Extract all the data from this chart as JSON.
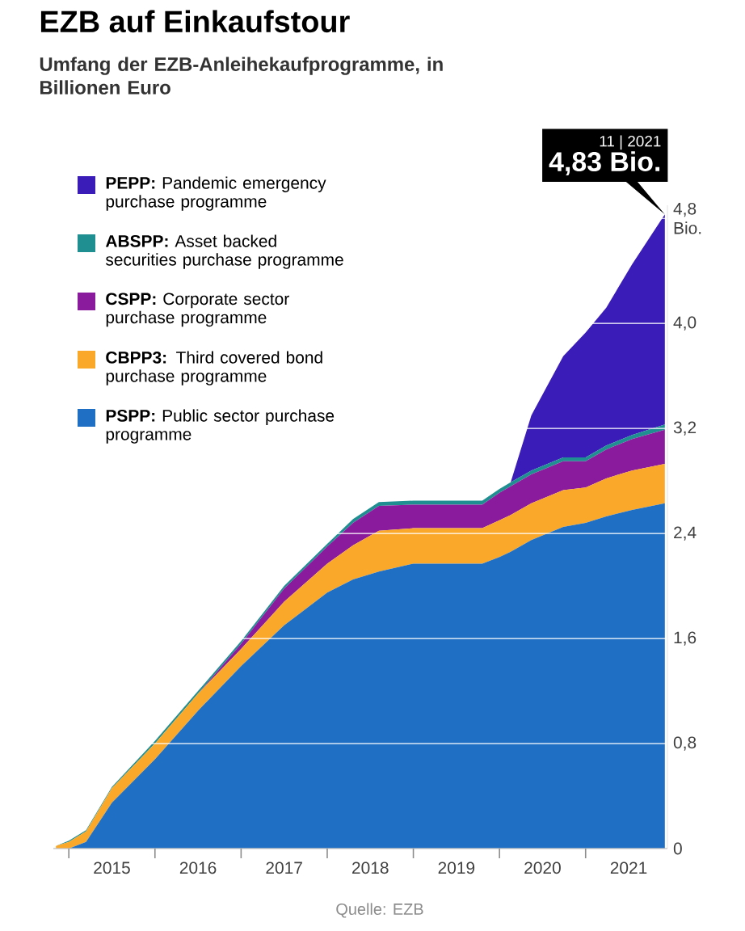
{
  "chart_data": {
    "type": "area",
    "title": "EZB auf Einkaufstour",
    "subtitle": "Umfang der EZB-Anleihekaufprogramme, in Billionen Euro",
    "x": [
      2014.85,
      2015.0,
      2015.2,
      2015.5,
      2016.0,
      2016.5,
      2017.0,
      2017.5,
      2018.0,
      2018.3,
      2018.6,
      2019.0,
      2019.5,
      2019.8,
      2020.0,
      2020.13,
      2020.37,
      2020.74,
      2021.0,
      2021.24,
      2021.54,
      2021.92
    ],
    "stacked": true,
    "series": [
      {
        "name": "**PSPP:** Public sector purchase programme",
        "color": "#1f6fc4",
        "values": [
          0,
          0,
          0.05,
          0.35,
          0.68,
          1.05,
          1.39,
          1.7,
          1.95,
          2.05,
          2.11,
          2.17,
          2.17,
          2.17,
          2.22,
          2.26,
          2.35,
          2.45,
          2.48,
          2.53,
          2.58,
          2.63
        ]
      },
      {
        "name": "**CBPP3:** Third covered bond purchase programme",
        "color": "#f9a82a",
        "values": [
          0.02,
          0.05,
          0.08,
          0.11,
          0.12,
          0.13,
          0.13,
          0.18,
          0.22,
          0.26,
          0.31,
          0.27,
          0.27,
          0.27,
          0.28,
          0.28,
          0.28,
          0.28,
          0.27,
          0.29,
          0.3,
          0.3
        ]
      },
      {
        "name": "**CSPP:** Corporate sector purchase programme",
        "color": "#8a1b9c",
        "values": [
          0,
          0,
          0,
          0,
          0,
          0,
          0.04,
          0.1,
          0.13,
          0.17,
          0.19,
          0.18,
          0.18,
          0.18,
          0.21,
          0.22,
          0.22,
          0.22,
          0.2,
          0.22,
          0.24,
          0.26
        ]
      },
      {
        "name": "**ABSPP:** Asset backed securities purchase programme",
        "color": "#1f8f92",
        "values": [
          0,
          0.01,
          0.01,
          0.01,
          0.02,
          0.02,
          0.02,
          0.02,
          0.02,
          0.03,
          0.03,
          0.03,
          0.03,
          0.03,
          0.03,
          0.03,
          0.03,
          0.03,
          0.03,
          0.03,
          0.03,
          0.04
        ]
      },
      {
        "name": "**PEPP:** Pandemic emergency purchase programme",
        "color": "#3a1cb8",
        "values": [
          0,
          0,
          0,
          0,
          0,
          0,
          0,
          0,
          0,
          0,
          0,
          0,
          0,
          0,
          0,
          0,
          0.42,
          0.77,
          0.95,
          1.05,
          1.3,
          1.6
        ]
      }
    ],
    "xlim": [
      2014.82,
      2021.95
    ],
    "xticks": [
      {
        "value": 2015,
        "label": null
      },
      {
        "value": 2016,
        "label": null
      },
      {
        "value": 2017,
        "label": null
      },
      {
        "value": 2018,
        "label": null
      },
      {
        "value": 2019,
        "label": null
      },
      {
        "value": 2020,
        "label": null
      },
      {
        "value": 2021,
        "label": null
      },
      {
        "value": 2015.5,
        "label": "2015"
      },
      {
        "value": 2016.5,
        "label": "2016"
      },
      {
        "value": 2017.5,
        "label": "2017"
      },
      {
        "value": 2018.5,
        "label": "2018"
      },
      {
        "value": 2019.5,
        "label": "2019"
      },
      {
        "value": 2020.5,
        "label": "2020"
      },
      {
        "value": 2021.5,
        "label": "2021"
      }
    ],
    "ylim": [
      0,
      4.9
    ],
    "yticks": [
      0,
      {
        "value": 0.8,
        "label": "0,8"
      },
      {
        "value": 1.6,
        "label": "1,6"
      },
      {
        "value": 2.4,
        "label": "2,4"
      },
      {
        "value": 3.2,
        "label": "3,2"
      },
      {
        "value": 4.0,
        "label": "4,0"
      },
      {
        "value": 4.8,
        "label": "4,8 Bio."
      }
    ],
    "grid": "y",
    "legend": "top left",
    "annotations": [
      "11 | 2021",
      {
        "text": "4,83 Bio.",
        "x": 2021.92,
        "y": 4.83
      },
      "Quelle: EZB"
    ]
  }
}
